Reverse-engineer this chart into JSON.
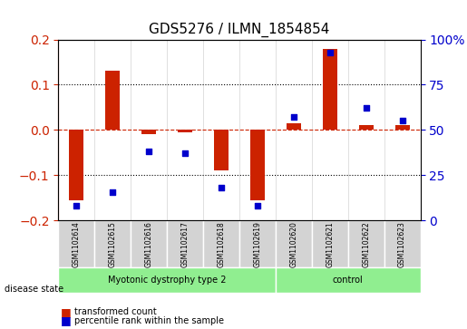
{
  "title": "GDS5276 / ILMN_1854854",
  "samples": [
    "GSM1102614",
    "GSM1102615",
    "GSM1102616",
    "GSM1102617",
    "GSM1102618",
    "GSM1102619",
    "GSM1102620",
    "GSM1102621",
    "GSM1102622",
    "GSM1102623"
  ],
  "red_values": [
    -0.155,
    0.13,
    -0.01,
    -0.005,
    -0.09,
    -0.155,
    0.015,
    0.18,
    0.01,
    0.01
  ],
  "blue_values": [
    0.08,
    0.155,
    0.38,
    0.37,
    0.18,
    0.08,
    0.57,
    0.93,
    0.62,
    0.55
  ],
  "groups": [
    {
      "label": "Myotonic dystrophy type 2",
      "start": 0,
      "end": 6,
      "color": "#90EE90"
    },
    {
      "label": "control",
      "start": 6,
      "end": 10,
      "color": "#90EE90"
    }
  ],
  "ylim_left": [
    -0.2,
    0.2
  ],
  "ylim_right": [
    0,
    1.0
  ],
  "yticks_left": [
    -0.2,
    -0.1,
    0.0,
    0.1,
    0.2
  ],
  "yticks_right": [
    0,
    25,
    50,
    75,
    100
  ],
  "ytick_labels_right": [
    "0",
    "25",
    "50",
    "75",
    "100%"
  ],
  "hline_y": 0,
  "dotted_lines": [
    0.1,
    -0.1
  ],
  "red_color": "#CC2200",
  "blue_color": "#0000CC",
  "bar_width": 0.4,
  "disease_state_label": "disease state",
  "legend_red": "transformed count",
  "legend_blue": "percentile rank within the sample"
}
